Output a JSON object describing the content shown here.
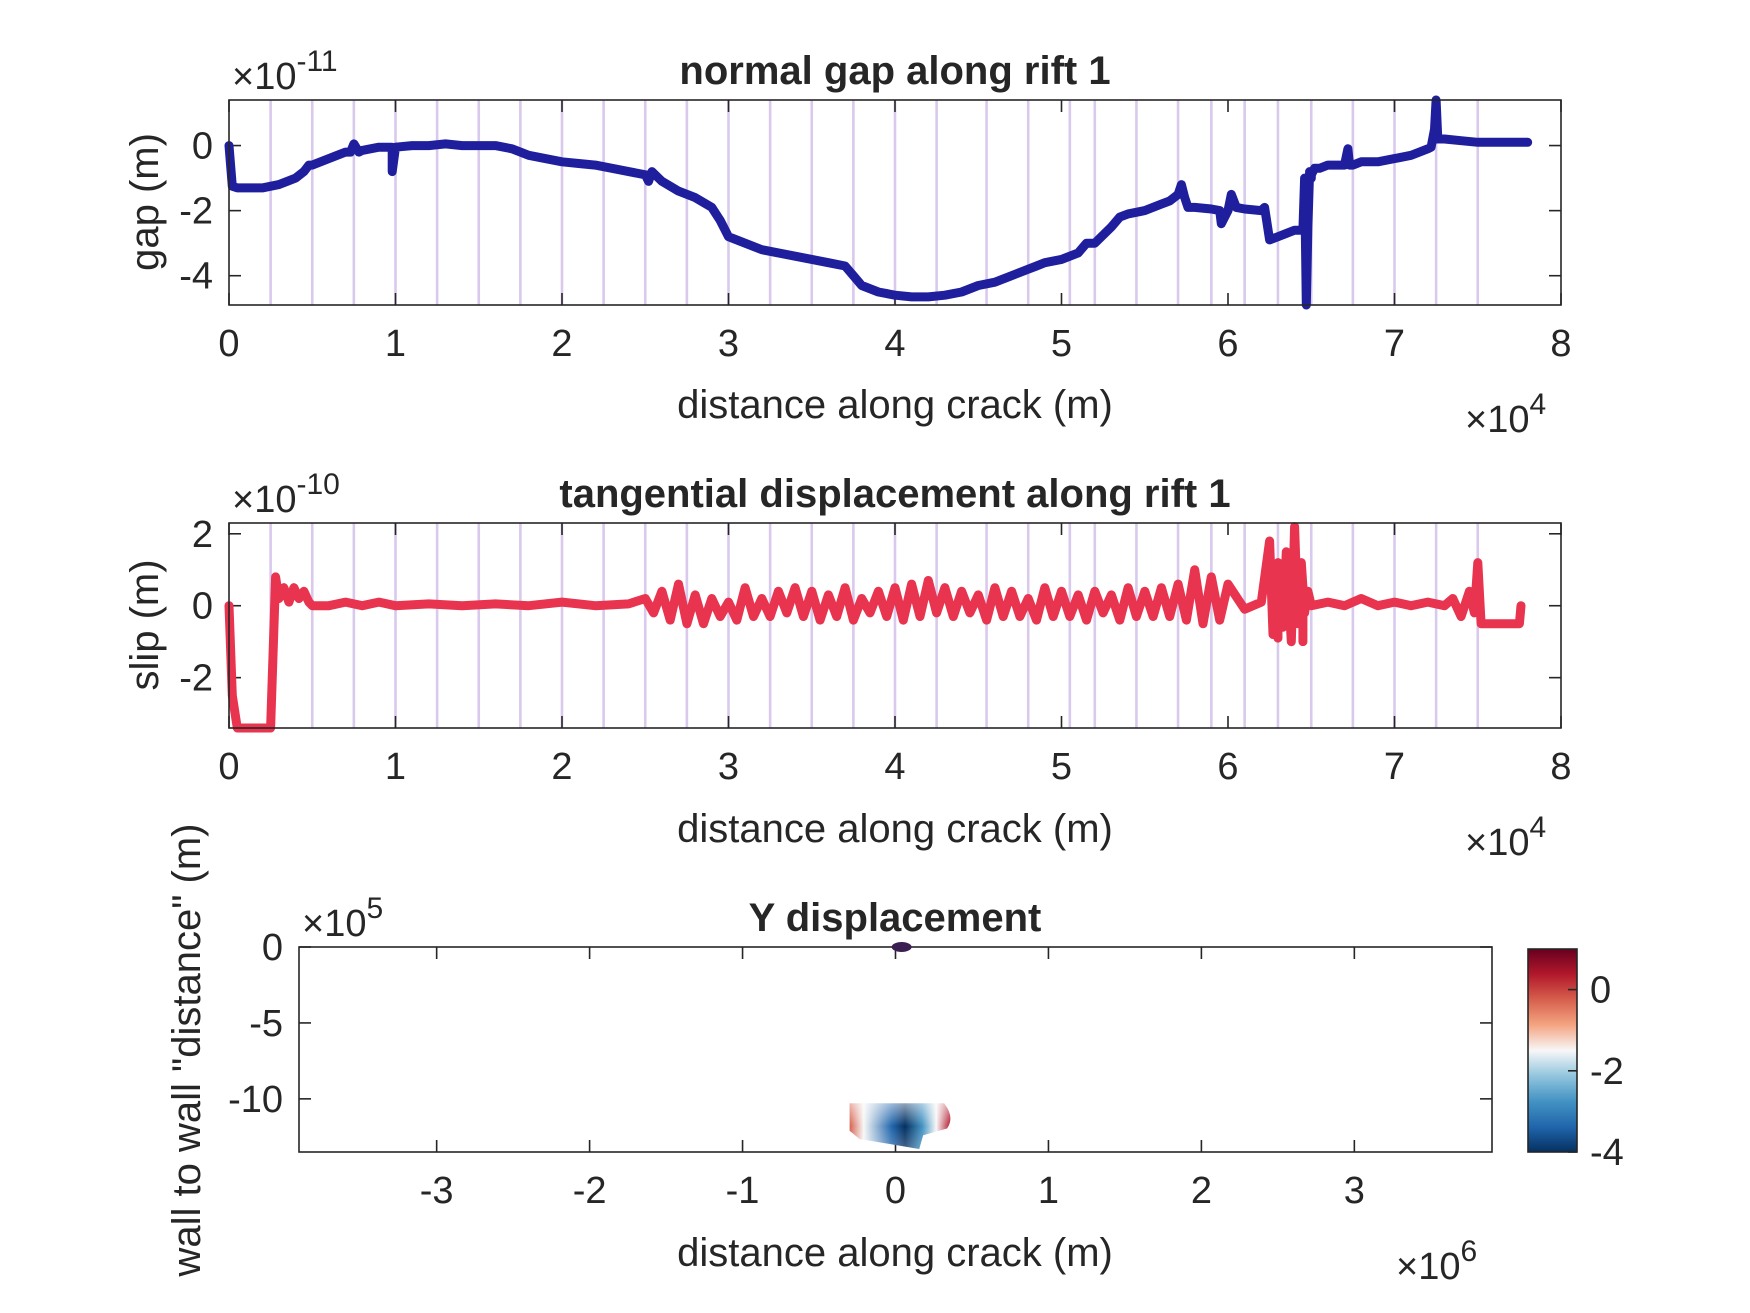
{
  "chart_data": [
    {
      "type": "line",
      "title": "normal gap along rift 1",
      "xlabel": "distance along crack (m)",
      "ylabel": "gap (m)",
      "x_exponent": "4",
      "y_exponent": "-11",
      "xlim": [
        0,
        8
      ],
      "ylim": [
        -4.9,
        1.4
      ],
      "xticks": [
        "0",
        "1",
        "2",
        "3",
        "4",
        "5",
        "6",
        "7",
        "8"
      ],
      "yticks": [
        "-4",
        "-2",
        "0"
      ],
      "color": "#1f1f9e",
      "ridge_lines_x": [
        0.25,
        0.5,
        0.75,
        1.0,
        1.25,
        1.5,
        1.75,
        2.0,
        2.25,
        2.5,
        2.75,
        3.0,
        3.25,
        3.5,
        3.75,
        4.0,
        4.25,
        4.55,
        4.8,
        5.05,
        5.2,
        5.45,
        5.7,
        5.9,
        6.1,
        6.3,
        6.5,
        6.75,
        7.0,
        7.25,
        7.5
      ],
      "series": [
        {
          "x": [
            0,
            0.02,
            0.05,
            0.1,
            0.2,
            0.3,
            0.35,
            0.4,
            0.45,
            0.48,
            0.5,
            0.55,
            0.6,
            0.65,
            0.7,
            0.73,
            0.75,
            0.78,
            0.8,
            0.85,
            0.9,
            0.95,
            0.98,
            0.98,
            1.0,
            1.1,
            1.2,
            1.3,
            1.4,
            1.5,
            1.6,
            1.7,
            1.75,
            1.8,
            1.9,
            2.0,
            2.1,
            2.2,
            2.3,
            2.4,
            2.5,
            2.52,
            2.54,
            2.6,
            2.7,
            2.8,
            2.9,
            2.95,
            3.0,
            3.1,
            3.2,
            3.3,
            3.4,
            3.5,
            3.6,
            3.7,
            3.75,
            3.8,
            3.9,
            3.95,
            4.0,
            4.1,
            4.2,
            4.3,
            4.4,
            4.5,
            4.6,
            4.7,
            4.8,
            4.85,
            4.9,
            5.0,
            5.1,
            5.15,
            5.2,
            5.3,
            5.35,
            5.4,
            5.5,
            5.6,
            5.65,
            5.7,
            5.72,
            5.74,
            5.76,
            5.8,
            5.9,
            5.95,
            5.96,
            6.0,
            6.02,
            6.05,
            6.1,
            6.2,
            6.22,
            6.25,
            6.3,
            6.35,
            6.4,
            6.45,
            6.46,
            6.47,
            6.48,
            6.49,
            6.5,
            6.5,
            6.52,
            6.55,
            6.6,
            6.7,
            6.72,
            6.73,
            6.75,
            6.8,
            6.9,
            7.0,
            7.1,
            7.15,
            7.2,
            7.22,
            7.24,
            7.25,
            7.26,
            7.3,
            7.4,
            7.5,
            7.6,
            7.7,
            7.8
          ],
          "values": [
            0,
            -1.25,
            -1.3,
            -1.3,
            -1.3,
            -1.2,
            -1.1,
            -1.0,
            -0.8,
            -0.6,
            -0.6,
            -0.5,
            -0.4,
            -0.3,
            -0.2,
            -0.2,
            0.05,
            -0.2,
            -0.15,
            -0.1,
            -0.05,
            -0.05,
            -0.05,
            -0.8,
            -0.05,
            0,
            0,
            0.05,
            0,
            0,
            0,
            -0.1,
            -0.2,
            -0.3,
            -0.4,
            -0.5,
            -0.55,
            -0.6,
            -0.7,
            -0.8,
            -0.9,
            -1.1,
            -0.8,
            -1.1,
            -1.4,
            -1.6,
            -1.9,
            -2.3,
            -2.8,
            -3.0,
            -3.2,
            -3.3,
            -3.4,
            -3.5,
            -3.6,
            -3.7,
            -4.0,
            -4.3,
            -4.5,
            -4.55,
            -4.6,
            -4.65,
            -4.65,
            -4.6,
            -4.5,
            -4.3,
            -4.2,
            -4.0,
            -3.8,
            -3.7,
            -3.6,
            -3.5,
            -3.3,
            -3.0,
            -3.0,
            -2.5,
            -2.2,
            -2.1,
            -2.0,
            -1.8,
            -1.7,
            -1.5,
            -1.2,
            -1.6,
            -1.9,
            -1.9,
            -1.95,
            -2.0,
            -2.4,
            -2.0,
            -1.5,
            -1.9,
            -1.95,
            -2.0,
            -1.9,
            -2.9,
            -2.8,
            -2.7,
            -2.6,
            -2.6,
            -1.0,
            -4.9,
            -2.5,
            -0.8,
            -1.0,
            -0.9,
            -0.7,
            -0.7,
            -0.6,
            -0.6,
            -0.1,
            -0.6,
            -0.6,
            -0.5,
            -0.5,
            -0.4,
            -0.3,
            -0.2,
            -0.1,
            -0.05,
            0.5,
            1.4,
            0.2,
            0.2,
            0.15,
            0.1,
            0.1,
            0.1,
            0.1
          ]
        }
      ]
    },
    {
      "type": "line",
      "title": "tangential displacement along rift 1",
      "xlabel": "distance along crack (m)",
      "ylabel": "slip (m)",
      "x_exponent": "4",
      "y_exponent": "-10",
      "xlim": [
        0,
        8
      ],
      "ylim": [
        -3.4,
        2.3
      ],
      "xticks": [
        "0",
        "1",
        "2",
        "3",
        "4",
        "5",
        "6",
        "7",
        "8"
      ],
      "yticks": [
        "-2",
        "0",
        "2"
      ],
      "color": "#e8344e",
      "ridge_lines_x": [
        0.25,
        0.5,
        0.75,
        1.0,
        1.25,
        1.5,
        1.75,
        2.0,
        2.25,
        2.5,
        2.75,
        3.0,
        3.25,
        3.5,
        3.75,
        4.0,
        4.25,
        4.55,
        4.8,
        5.05,
        5.2,
        5.45,
        5.7,
        5.9,
        6.1,
        6.3,
        6.5,
        6.75,
        7.0,
        7.25,
        7.5
      ],
      "series": [
        {
          "x": [
            0,
            0.02,
            0.05,
            0.25,
            0.28,
            0.3,
            0.33,
            0.36,
            0.39,
            0.42,
            0.45,
            0.48,
            0.5,
            0.6,
            0.7,
            0.8,
            0.9,
            1.0,
            1.2,
            1.4,
            1.6,
            1.8,
            2.0,
            2.2,
            2.4,
            2.5,
            2.55,
            2.6,
            2.65,
            2.7,
            2.75,
            2.8,
            2.85,
            2.9,
            2.95,
            3.0,
            3.05,
            3.1,
            3.15,
            3.2,
            3.25,
            3.3,
            3.35,
            3.4,
            3.45,
            3.5,
            3.55,
            3.6,
            3.65,
            3.7,
            3.75,
            3.8,
            3.85,
            3.9,
            3.95,
            4.0,
            4.05,
            4.1,
            4.15,
            4.2,
            4.25,
            4.3,
            4.35,
            4.4,
            4.45,
            4.5,
            4.55,
            4.6,
            4.65,
            4.7,
            4.75,
            4.8,
            4.85,
            4.9,
            4.95,
            5.0,
            5.05,
            5.1,
            5.15,
            5.2,
            5.25,
            5.3,
            5.35,
            5.4,
            5.45,
            5.5,
            5.55,
            5.6,
            5.65,
            5.7,
            5.75,
            5.8,
            5.85,
            5.9,
            5.95,
            6.0,
            6.1,
            6.2,
            6.25,
            6.27,
            6.3,
            6.33,
            6.35,
            6.38,
            6.4,
            6.42,
            6.44,
            6.46,
            6.48,
            6.5,
            6.6,
            6.7,
            6.8,
            6.9,
            7.0,
            7.1,
            7.2,
            7.3,
            7.35,
            7.4,
            7.45,
            7.48,
            7.5,
            7.52,
            7.6,
            7.7,
            7.75,
            7.76
          ],
          "values": [
            0,
            -2.5,
            -3.4,
            -3.4,
            0.8,
            0.2,
            0.5,
            0.1,
            0.5,
            0.2,
            0.4,
            0.1,
            0,
            0,
            0.1,
            0,
            0.1,
            0,
            0.05,
            0,
            0.05,
            0,
            0.1,
            0,
            0.05,
            0.2,
            -0.2,
            0.4,
            -0.4,
            0.6,
            -0.5,
            0.3,
            -0.5,
            0.2,
            -0.3,
            0.1,
            -0.4,
            0.5,
            -0.3,
            0.2,
            -0.3,
            0.4,
            -0.2,
            0.5,
            -0.3,
            0.4,
            -0.4,
            0.3,
            -0.3,
            0.5,
            -0.4,
            0.2,
            -0.2,
            0.4,
            -0.3,
            0.5,
            -0.4,
            0.6,
            -0.3,
            0.7,
            -0.2,
            0.5,
            -0.3,
            0.4,
            -0.2,
            0.3,
            -0.4,
            0.5,
            -0.3,
            0.4,
            -0.3,
            0.2,
            -0.4,
            0.5,
            -0.3,
            0.4,
            -0.3,
            0.3,
            -0.4,
            0.4,
            -0.2,
            0.3,
            -0.4,
            0.5,
            -0.3,
            0.4,
            -0.3,
            0.5,
            -0.3,
            0.6,
            -0.4,
            1.0,
            -0.5,
            0.8,
            -0.4,
            0.6,
            -0.1,
            0.1,
            1.8,
            -0.8,
            1.2,
            -0.6,
            1.5,
            -1.0,
            2.2,
            -0.5,
            1.2,
            -0.2,
            0.4,
            0,
            0.1,
            0,
            0.2,
            0,
            0.1,
            0,
            0.1,
            0,
            0.2,
            -0.3,
            0.4,
            -0.2,
            1.2,
            -0.5,
            -0.5,
            -0.5,
            -0.5,
            0
          ],
          "pre_spike_extra_x": [
            6.3,
            6.45
          ],
          "pre_spike_extra_values": [
            -0.9,
            -1.0
          ]
        }
      ]
    },
    {
      "type": "heatmap",
      "title": "Y displacement",
      "xlabel": "distance along crack (m)",
      "ylabel": "wall to wall \"distance\" (m)",
      "x_exponent": "6",
      "y_exponent": "5",
      "xlim": [
        -3.9,
        3.9
      ],
      "ylim": [
        -13.5,
        0
      ],
      "xticks": [
        "-3",
        "-2",
        "-1",
        "0",
        "1",
        "2",
        "3"
      ],
      "yticks": [
        "-10",
        "-5",
        "0"
      ],
      "colorbar": {
        "range": [
          -4,
          1
        ],
        "ticks": [
          "-4",
          "-2",
          "0"
        ],
        "colormap": [
          "#053061",
          "#2166ac",
          "#4393c3",
          "#92c5de",
          "#f7f7f7",
          "#f4a582",
          "#d6604d",
          "#b2182b",
          "#67001f"
        ]
      },
      "dot": {
        "x": 0.04,
        "y": 0,
        "color": "#3b1f52"
      },
      "patch": {
        "x_range": [
          -0.3,
          0.35
        ],
        "y_range": [
          -13.3,
          -10.3
        ]
      }
    }
  ]
}
